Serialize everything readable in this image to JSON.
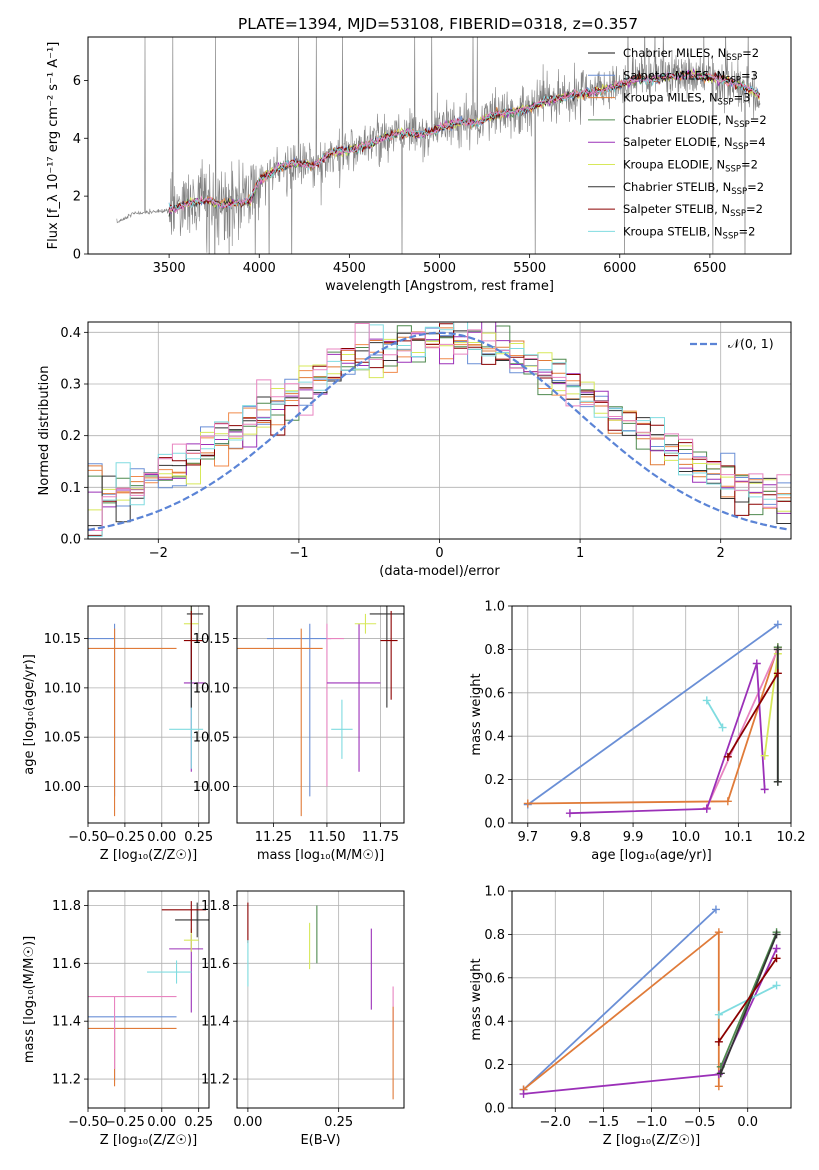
{
  "colors": {
    "Chabrier MILES": "#f08a4b",
    "Salpeter MILES": "#6a8fd6",
    "Kroupa MILES": "#e07b39",
    "Chabrier ELODIE": "#4f8a4f",
    "Salpeter ELODIE": "#9b30b8",
    "Kroupa ELODIE": "#d7e85a",
    "Chabrier STELIB": "#333333",
    "Salpeter STELIB": "#8b0000",
    "Kroupa STELIB": "#80dce0",
    "Chabrier STELIB pink": "#e884c0",
    "normal": "#5b84d6",
    "grey": "#808080"
  },
  "chart_data": [
    {
      "type": "line",
      "title": "PLATE=1394, MJD=53108, FIBERID=0318, z=0.357",
      "xlabel": "wavelength [Angstrom, rest frame]",
      "ylabel": "Flux [f_λ 10⁻¹⁷ erg cm⁻² s⁻¹ A⁻¹]",
      "xlim": [
        3050,
        6950
      ],
      "ylim": [
        0,
        7.5
      ],
      "xticks": [
        "3500",
        "4000",
        "4500",
        "5000",
        "5500",
        "6000",
        "6500"
      ],
      "yticks": [
        "0",
        "2",
        "4",
        "6"
      ],
      "legend_position": "top-right",
      "legend": [
        {
          "label": "Chabrier MILES, N",
          "sub": "SSP",
          "tail": "=2",
          "color": "#111111"
        },
        {
          "label": "Salpeter MILES, N",
          "sub": "SSP",
          "tail": "=3",
          "color": "#6a8fd6"
        },
        {
          "label": "Kroupa MILES, N",
          "sub": "SSP",
          "tail": "=3",
          "color": "#e07b39"
        },
        {
          "label": "Chabrier ELODIE, N",
          "sub": "SSP",
          "tail": "=2",
          "color": "#4f8a4f"
        },
        {
          "label": "Salpeter ELODIE, N",
          "sub": "SSP",
          "tail": "=4",
          "color": "#9b30b8"
        },
        {
          "label": "Kroupa ELODIE, N",
          "sub": "SSP",
          "tail": "=2",
          "color": "#d7e85a"
        },
        {
          "label": "Chabrier STELIB, N",
          "sub": "SSP",
          "tail": "=2",
          "color": "#333333"
        },
        {
          "label": "Salpeter STELIB, N",
          "sub": "SSP",
          "tail": "=2",
          "color": "#8b0000"
        },
        {
          "label": "Kroupa STELIB, N",
          "sub": "SSP",
          "tail": "=2",
          "color": "#80dce0"
        }
      ],
      "model_continuum": [
        [
          3200,
          1.05
        ],
        [
          3300,
          1.4
        ],
        [
          3400,
          1.45
        ],
        [
          3500,
          1.5
        ],
        [
          3600,
          1.75
        ],
        [
          3700,
          1.85
        ],
        [
          3800,
          1.7
        ],
        [
          3900,
          1.8
        ],
        [
          3950,
          1.85
        ],
        [
          4000,
          2.55
        ],
        [
          4100,
          2.95
        ],
        [
          4200,
          3.15
        ],
        [
          4300,
          3.05
        ],
        [
          4400,
          3.5
        ],
        [
          4500,
          3.6
        ],
        [
          4600,
          3.75
        ],
        [
          4700,
          4.05
        ],
        [
          4800,
          4.2
        ],
        [
          4900,
          4.1
        ],
        [
          5000,
          4.35
        ],
        [
          5100,
          4.55
        ],
        [
          5200,
          4.55
        ],
        [
          5300,
          4.8
        ],
        [
          5400,
          4.9
        ],
        [
          5500,
          5.05
        ],
        [
          5600,
          5.3
        ],
        [
          5700,
          5.45
        ],
        [
          5800,
          5.55
        ],
        [
          5900,
          5.65
        ],
        [
          6000,
          5.85
        ],
        [
          6100,
          6.05
        ],
        [
          6200,
          6.05
        ],
        [
          6300,
          6.15
        ],
        [
          6400,
          6.2
        ],
        [
          6500,
          6.1
        ],
        [
          6600,
          6.0
        ],
        [
          6700,
          5.75
        ],
        [
          6780,
          5.45
        ]
      ]
    },
    {
      "type": "line",
      "xlabel": "(data-model)/error",
      "ylabel": "Normed distribution",
      "xlim": [
        -2.5,
        2.5
      ],
      "ylim": [
        0,
        0.42
      ],
      "xticks": [
        "−2",
        "−1",
        "0",
        "1",
        "2"
      ],
      "yticks": [
        "0.0",
        "0.1",
        "0.2",
        "0.3",
        "0.4"
      ],
      "legend_position": "top-right",
      "legend_label": "𝒩(0, 1)",
      "histogram_bins": 50,
      "histogram_edges": [
        -2.5,
        2.5
      ]
    },
    {
      "type": "scatter",
      "xlabel": "Z [log₁₀(Z/Z☉)]",
      "ylabel": "age  [log₁₀(age/yr)]",
      "xlim": [
        -0.5,
        0.32
      ],
      "ylim": [
        9.963,
        10.183
      ],
      "xticks": [
        "−0.50",
        "−0.25",
        "0.00",
        "0.25"
      ],
      "yticks": [
        "10.00",
        "10.05",
        "10.10",
        "10.15"
      ],
      "points": [
        {
          "x": -0.32,
          "y": 10.15,
          "xerr": [
            0.45,
            0.0
          ],
          "yerr": [
            0.16,
            0.015
          ],
          "color": "#6a8fd6"
        },
        {
          "x": -0.32,
          "y": 10.14,
          "xerr": [
            0.3,
            0.42
          ],
          "yerr": [
            0.17,
            0.02
          ],
          "color": "#e07b39"
        },
        {
          "x": 0.2,
          "y": 10.105,
          "xerr": [
            0.05,
            0.1
          ],
          "yerr": [
            0.09,
            0.06
          ],
          "color": "#9b30b8"
        },
        {
          "x": 0.2,
          "y": 10.058,
          "xerr": [
            0.15,
            0.08
          ],
          "yerr": [
            0.04,
            0.08
          ],
          "color": "#80dce0"
        },
        {
          "x": 0.2,
          "y": 10.165,
          "xerr": [
            0.05,
            0.05
          ],
          "yerr": [
            0.02,
            0.02
          ],
          "color": "#d7e85a"
        },
        {
          "x": 0.2,
          "y": 10.175,
          "xerr": [
            0.03,
            0.08
          ],
          "yerr": [
            0.095,
            0.01
          ],
          "color": "#333333"
        },
        {
          "x": 0.2,
          "y": 10.148,
          "xerr": [
            0.05,
            0.08
          ],
          "yerr": [
            0.04,
            0.03
          ],
          "color": "#8b0000"
        }
      ]
    },
    {
      "type": "scatter",
      "xlabel": "mass [log₁₀(M/M☉)]",
      "ylabel": "",
      "xlim": [
        11.08,
        11.86
      ],
      "ylim": [
        9.963,
        10.183
      ],
      "xticks": [
        "11.25",
        "11.50",
        "11.75"
      ],
      "yticks": [
        "10.00",
        "10.05",
        "10.10",
        "10.15"
      ],
      "points": [
        {
          "x": 11.42,
          "y": 10.15,
          "xerr": [
            0.2,
            0.1
          ],
          "yerr": [
            0.16,
            0.015
          ],
          "color": "#6a8fd6"
        },
        {
          "x": 11.38,
          "y": 10.14,
          "xerr": [
            0.3,
            0.1
          ],
          "yerr": [
            0.17,
            0.02
          ],
          "color": "#e07b39"
        },
        {
          "x": 11.5,
          "y": 10.15,
          "xerr": [
            0.0,
            0.08
          ],
          "yerr": [
            0.15,
            0.015
          ],
          "color": "#e884c0"
        },
        {
          "x": 11.65,
          "y": 10.105,
          "xerr": [
            0.15,
            0.1
          ],
          "yerr": [
            0.09,
            0.06
          ],
          "color": "#9b30b8"
        },
        {
          "x": 11.57,
          "y": 10.058,
          "xerr": [
            0.05,
            0.05
          ],
          "yerr": [
            0.03,
            0.03
          ],
          "color": "#80dce0"
        },
        {
          "x": 11.68,
          "y": 10.165,
          "xerr": [
            0.05,
            0.05
          ],
          "yerr": [
            0.01,
            0.01
          ],
          "color": "#d7e85a"
        },
        {
          "x": 11.78,
          "y": 10.175,
          "xerr": [
            0.08,
            0.08
          ],
          "yerr": [
            0.095,
            0.01
          ],
          "color": "#333333"
        },
        {
          "x": 11.8,
          "y": 10.148,
          "xerr": [
            0.05,
            0.03
          ],
          "yerr": [
            0.06,
            0.03
          ],
          "color": "#8b0000"
        }
      ]
    },
    {
      "type": "line",
      "xlabel": "age  [log₁₀(age/yr)]",
      "ylabel": "mass weight",
      "xlim": [
        9.67,
        10.2
      ],
      "ylim": [
        0,
        1
      ],
      "xticks": [
        "9.7",
        "9.8",
        "9.9",
        "10.0",
        "10.1",
        "10.2"
      ],
      "yticks": [
        "0.0",
        "0.2",
        "0.4",
        "0.6",
        "0.8",
        "1.0"
      ],
      "series": [
        {
          "color": "#6a8fd6",
          "x": [
            9.7,
            10.175
          ],
          "y": [
            0.085,
            0.915
          ]
        },
        {
          "color": "#e07b39",
          "x": [
            9.7,
            10.08,
            10.175
          ],
          "y": [
            0.09,
            0.1,
            0.81
          ]
        },
        {
          "color": "#e884c0",
          "x": [
            10.04,
            10.175
          ],
          "y": [
            0.07,
            0.8
          ]
        },
        {
          "color": "#9b30b8",
          "x": [
            9.78,
            10.04,
            10.135,
            10.15
          ],
          "y": [
            0.045,
            0.065,
            0.735,
            0.155
          ]
        },
        {
          "color": "#80dce0",
          "x": [
            10.04,
            10.07
          ],
          "y": [
            0.565,
            0.44
          ]
        },
        {
          "color": "#d7e85a",
          "x": [
            10.15,
            10.175
          ],
          "y": [
            0.31,
            0.78
          ]
        },
        {
          "color": "#4f8a4f",
          "x": [
            10.175,
            10.175
          ],
          "y": [
            0.19,
            0.81
          ]
        },
        {
          "color": "#333333",
          "x": [
            10.175,
            10.175
          ],
          "y": [
            0.19,
            0.8
          ]
        },
        {
          "color": "#8b0000",
          "x": [
            10.08,
            10.175
          ],
          "y": [
            0.305,
            0.69
          ]
        }
      ]
    },
    {
      "type": "scatter",
      "xlabel": "Z [log₁₀(Z/Z☉)]",
      "ylabel": "mass [log₁₀(M/M☉)]",
      "xlim": [
        -0.5,
        0.32
      ],
      "ylim": [
        11.1,
        11.85
      ],
      "xticks": [
        "−0.50",
        "−0.25",
        "0.00",
        "0.25"
      ],
      "yticks": [
        "11.2",
        "11.4",
        "11.6",
        "11.8"
      ],
      "points": [
        {
          "x": -0.32,
          "y": 11.415,
          "xerr": [
            0.45,
            0.42
          ],
          "yerr": [
            0.22,
            0.0
          ],
          "color": "#6a8fd6"
        },
        {
          "x": -0.32,
          "y": 11.375,
          "xerr": [
            0.42,
            0.42
          ],
          "yerr": [
            0.2,
            0.0
          ],
          "color": "#e07b39"
        },
        {
          "x": -0.32,
          "y": 11.485,
          "xerr": [
            0.3,
            0.42
          ],
          "yerr": [
            0.25,
            0.0
          ],
          "color": "#e884c0"
        },
        {
          "x": 0.2,
          "y": 11.65,
          "xerr": [
            0.15,
            0.08
          ],
          "yerr": [
            0.22,
            0.05
          ],
          "color": "#9b30b8"
        },
        {
          "x": 0.1,
          "y": 11.57,
          "xerr": [
            0.2,
            0.1
          ],
          "yerr": [
            0.04,
            0.04
          ],
          "color": "#80dce0"
        },
        {
          "x": 0.2,
          "y": 11.68,
          "xerr": [
            0.05,
            0.05
          ],
          "yerr": [
            0.04,
            0.04
          ],
          "color": "#d7e85a"
        },
        {
          "x": 0.24,
          "y": 11.75,
          "xerr": [
            0.15,
            0.08
          ],
          "yerr": [
            0.06,
            0.06
          ],
          "color": "#333333"
        },
        {
          "x": 0.2,
          "y": 11.785,
          "xerr": [
            0.2,
            0.1
          ],
          "yerr": [
            0.08,
            0.03
          ],
          "color": "#8b0000"
        }
      ]
    },
    {
      "type": "scatter",
      "xlabel": "E(B-V)",
      "ylabel": "",
      "xlim": [
        -0.03,
        0.43
      ],
      "ylim": [
        11.1,
        11.85
      ],
      "xticks": [
        "0.00",
        "0.25"
      ],
      "yticks": [
        "11.2",
        "11.4",
        "11.6",
        "11.8"
      ],
      "points": [
        {
          "x": 0.0,
          "y": 11.75,
          "yerr": [
            0.08,
            0.06
          ],
          "color": "#8b0000"
        },
        {
          "x": 0.0,
          "y": 11.6,
          "yerr": [
            0.08,
            0.08
          ],
          "color": "#80dce0"
        },
        {
          "x": 0.17,
          "y": 11.66,
          "yerr": [
            0.08,
            0.08
          ],
          "color": "#d7e85a"
        },
        {
          "x": 0.19,
          "y": 11.7,
          "yerr": [
            0.1,
            0.1
          ],
          "color": "#4f8a4f"
        },
        {
          "x": 0.34,
          "y": 11.58,
          "yerr": [
            0.14,
            0.14
          ],
          "color": "#9b30b8"
        },
        {
          "x": 0.4,
          "y": 11.45,
          "yerr": [
            0.08,
            0.07
          ],
          "color": "#e884c0"
        },
        {
          "x": 0.4,
          "y": 11.29,
          "yerr": [
            0.16,
            0.16
          ],
          "color": "#e07b39"
        }
      ]
    },
    {
      "type": "line",
      "xlabel": "Z [log₁₀(Z/Z☉)]",
      "ylabel": "mass weight",
      "xlim": [
        -2.45,
        0.45
      ],
      "ylim": [
        0,
        1
      ],
      "xticks": [
        "−2.0",
        "−1.5",
        "−1.0",
        "−0.5",
        "0.0"
      ],
      "yticks": [
        "0.0",
        "0.2",
        "0.4",
        "0.6",
        "0.8",
        "1.0"
      ],
      "series": [
        {
          "color": "#6a8fd6",
          "x": [
            -2.33,
            -0.33
          ],
          "y": [
            0.085,
            0.915
          ]
        },
        {
          "color": "#e07b39",
          "x": [
            -2.33,
            -0.3,
            -0.3
          ],
          "y": [
            0.085,
            0.81,
            0.1
          ]
        },
        {
          "color": "#9b30b8",
          "x": [
            -2.33,
            -0.3,
            0.3
          ],
          "y": [
            0.065,
            0.155,
            0.735
          ]
        },
        {
          "color": "#80dce0",
          "x": [
            -0.3,
            0.3
          ],
          "y": [
            0.43,
            0.565
          ]
        },
        {
          "color": "#4f8a4f",
          "x": [
            -0.28,
            0.3
          ],
          "y": [
            0.19,
            0.81
          ]
        },
        {
          "color": "#333333",
          "x": [
            -0.28,
            0.3
          ],
          "y": [
            0.16,
            0.8
          ]
        },
        {
          "color": "#8b0000",
          "x": [
            -0.3,
            0.3
          ],
          "y": [
            0.305,
            0.69
          ]
        }
      ]
    }
  ]
}
